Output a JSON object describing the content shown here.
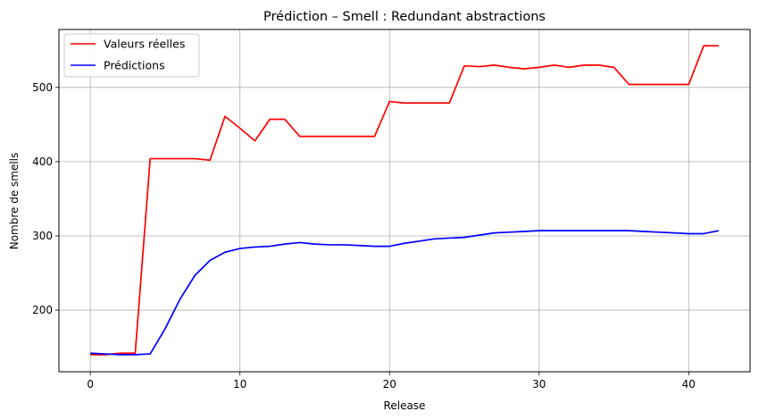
{
  "chart_data": {
    "type": "line",
    "title": "Prédiction – Smell : Redundant abstractions",
    "xlabel": "Release",
    "ylabel": "Nombre de smells",
    "xlim": [
      -2.1,
      44.1
    ],
    "ylim": [
      117,
      578
    ],
    "xticks": [
      0,
      10,
      20,
      30,
      40
    ],
    "yticks": [
      200,
      300,
      400,
      500
    ],
    "grid": true,
    "legend_position": "upper-left",
    "x": [
      0,
      1,
      2,
      3,
      4,
      5,
      6,
      7,
      8,
      9,
      10,
      11,
      12,
      13,
      14,
      15,
      16,
      17,
      18,
      19,
      20,
      21,
      22,
      23,
      24,
      25,
      26,
      27,
      28,
      29,
      30,
      31,
      32,
      33,
      34,
      35,
      36,
      37,
      38,
      39,
      40,
      41,
      42
    ],
    "series": [
      {
        "name": "Valeurs réelles",
        "color": "#ff0000",
        "values": [
          140,
          140,
          142,
          142,
          404,
          404,
          404,
          404,
          402,
          461,
          445,
          428,
          457,
          457,
          434,
          434,
          434,
          434,
          434,
          434,
          481,
          479,
          479,
          479,
          479,
          529,
          528,
          530,
          527,
          525,
          527,
          530,
          527,
          530,
          530,
          527,
          504,
          504,
          504,
          504,
          504,
          556,
          556
        ]
      },
      {
        "name": "Prédictions",
        "color": "#0000ff",
        "values": [
          142,
          141,
          140,
          140,
          141,
          175,
          215,
          247,
          267,
          278,
          283,
          285,
          286,
          289,
          291,
          289,
          288,
          288,
          287,
          286,
          286,
          290,
          293,
          296,
          297,
          298,
          301,
          304,
          305,
          306,
          307,
          307,
          307,
          307,
          307,
          307,
          307,
          306,
          305,
          304,
          303,
          303,
          307
        ]
      }
    ]
  }
}
